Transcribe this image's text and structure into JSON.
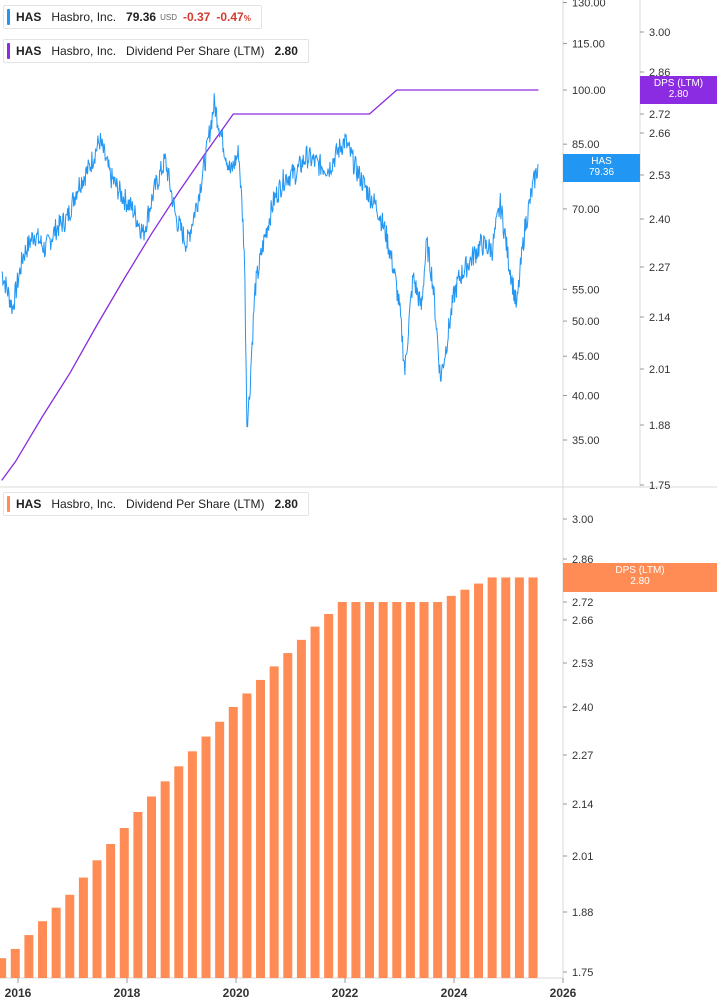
{
  "legend_price": {
    "ticker": "HAS",
    "name": "Hasbro, Inc.",
    "price": "79.36",
    "currency": "USD",
    "change": "-0.37",
    "change_pct": "-0.47",
    "pct_sign": "%",
    "color": "#2196f3"
  },
  "legend_dps_top": {
    "ticker": "HAS",
    "name": "Hasbro, Inc.",
    "metric": "Dividend Per Share (LTM)",
    "value": "2.80",
    "color": "#8b2be2"
  },
  "legend_dps_bottom": {
    "ticker": "HAS",
    "name": "Hasbro, Inc.",
    "metric": "Dividend Per Share (LTM)",
    "value": "2.80",
    "color": "#ff8c55"
  },
  "tags": {
    "price": {
      "label": "HAS",
      "value": "79.36",
      "color": "#2196f3"
    },
    "dps_top": {
      "label": "DPS (LTM)",
      "value": "2.80",
      "color": "#8b2be2"
    },
    "dps_bottom": {
      "label": "DPS (LTM)",
      "value": "2.80",
      "color": "#ff8c55"
    }
  },
  "chart_data": [
    {
      "type": "line",
      "series": [
        {
          "name": "HAS",
          "axis": "price",
          "x": [
            2015.7,
            2015.9,
            2016.1,
            2016.3,
            2016.5,
            2016.7,
            2016.9,
            2017.1,
            2017.3,
            2017.5,
            2017.7,
            2017.9,
            2018.1,
            2018.3,
            2018.5,
            2018.7,
            2018.9,
            2019.1,
            2019.3,
            2019.45,
            2019.6,
            2019.75,
            2019.9,
            2020.05,
            2020.15,
            2020.2,
            2020.25,
            2020.35,
            2020.5,
            2020.7,
            2020.9,
            2021.1,
            2021.3,
            2021.5,
            2021.7,
            2021.9,
            2022.0,
            2022.2,
            2022.4,
            2022.6,
            2022.75,
            2022.9,
            2023.0,
            2023.1,
            2023.25,
            2023.4,
            2023.5,
            2023.6,
            2023.75,
            2023.85,
            2024.0,
            2024.1,
            2024.3,
            2024.5,
            2024.7,
            2024.85,
            2025.0,
            2025.15,
            2025.3,
            2025.45,
            2025.55
          ],
          "y": [
            58,
            52,
            61,
            65,
            62,
            66,
            68,
            75,
            79,
            86,
            77,
            73,
            70,
            65,
            74,
            81,
            68,
            63,
            72,
            82,
            96,
            86,
            78,
            83,
            62,
            37,
            40,
            55,
            63,
            72,
            77,
            78,
            82,
            80,
            79,
            84,
            86,
            79,
            74,
            70,
            65,
            58,
            52,
            43,
            57,
            52,
            63,
            57,
            42,
            46,
            54,
            57,
            60,
            63,
            62,
            71,
            60,
            52,
            66,
            75,
            80
          ]
        },
        {
          "name": "Dividend Per Share (LTM)",
          "axis": "dps",
          "x": [
            2015.7,
            2015.95,
            2016.45,
            2016.95,
            2017.45,
            2017.95,
            2018.45,
            2018.95,
            2019.45,
            2019.95,
            2020.45,
            2020.95,
            2021.45,
            2021.95,
            2022.45,
            2022.95,
            2023.45,
            2023.95,
            2024.45,
            2024.95,
            2025.55
          ],
          "y": [
            1.76,
            1.8,
            1.9,
            2.0,
            2.12,
            2.24,
            2.36,
            2.48,
            2.6,
            2.72,
            2.72,
            2.72,
            2.72,
            2.72,
            2.72,
            2.8,
            2.8,
            2.8,
            2.8,
            2.8,
            2.8
          ]
        }
      ],
      "price_axis": {
        "scale": "log",
        "ticks": [
          "35.00",
          "40.00",
          "45.00",
          "50.00",
          "55.00",
          "70.00",
          "85.00",
          "100.00",
          "115.00",
          "130.00"
        ]
      },
      "dps_axis": {
        "ticks": [
          "1.75",
          "1.88",
          "2.01",
          "2.14",
          "2.27",
          "2.40",
          "2.53",
          "2.66",
          "2.72",
          "2.86",
          "3.00"
        ]
      },
      "x_ticks": [
        "2016",
        "2018",
        "2020",
        "2022",
        "2024",
        "2026"
      ]
    },
    {
      "type": "bar",
      "series": [
        {
          "name": "Dividend Per Share (LTM)",
          "color": "#ff8c55"
        }
      ],
      "x": [
        2015.7,
        2015.95,
        2016.2,
        2016.45,
        2016.7,
        2016.95,
        2017.2,
        2017.45,
        2017.7,
        2017.95,
        2018.2,
        2018.45,
        2018.7,
        2018.95,
        2019.2,
        2019.45,
        2019.7,
        2019.95,
        2020.2,
        2020.45,
        2020.7,
        2020.95,
        2021.2,
        2021.45,
        2021.7,
        2021.95,
        2022.2,
        2022.45,
        2022.7,
        2022.95,
        2023.2,
        2023.45,
        2023.7,
        2023.95,
        2024.2,
        2024.45,
        2024.7,
        2024.95,
        2025.2,
        2025.45
      ],
      "values": [
        1.78,
        1.8,
        1.83,
        1.86,
        1.89,
        1.92,
        1.96,
        2.0,
        2.04,
        2.08,
        2.12,
        2.16,
        2.2,
        2.24,
        2.28,
        2.32,
        2.36,
        2.4,
        2.44,
        2.48,
        2.52,
        2.56,
        2.6,
        2.64,
        2.68,
        2.72,
        2.72,
        2.72,
        2.72,
        2.72,
        2.72,
        2.72,
        2.72,
        2.74,
        2.76,
        2.78,
        2.8,
        2.8,
        2.8,
        2.8
      ],
      "y_ticks": [
        "1.75",
        "1.88",
        "2.01",
        "2.14",
        "2.27",
        "2.40",
        "2.53",
        "2.66",
        "2.72",
        "2.86",
        "3.00"
      ],
      "ylim": [
        1.75,
        3.0
      ]
    }
  ]
}
